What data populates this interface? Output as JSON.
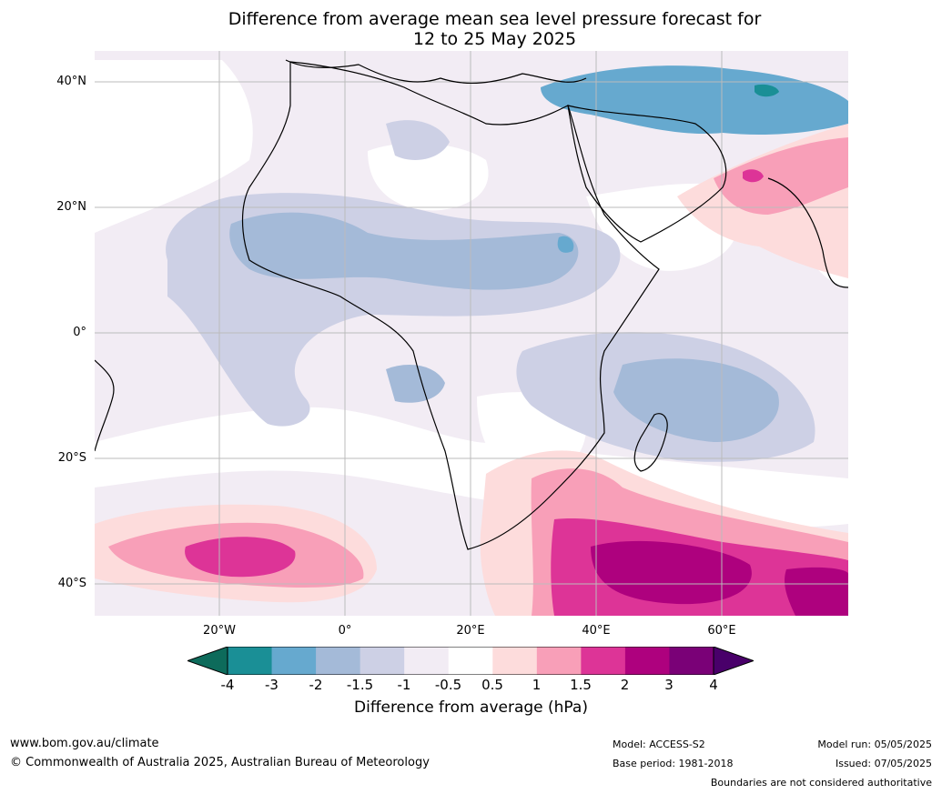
{
  "title": {
    "line1": "Difference from average mean sea level pressure forecast for",
    "line2": "12 to 25 May 2025"
  },
  "map": {
    "lat_labels": [
      "40°N",
      "20°N",
      "0°",
      "20°S",
      "40°S"
    ],
    "lon_labels": [
      "20°W",
      "0°",
      "20°E",
      "40°E",
      "60°E"
    ],
    "region": "Africa",
    "colors": {
      "lt_m4": "#0d6b5b",
      "m4_m3": "#1a8f96",
      "m3_m2": "#66a9cf",
      "m2_m15": "#a4bad8",
      "m15_m1": "#cdd0e5",
      "m1_m05": "#f2ecf4",
      "neutral": "#ffffff",
      "p05_p1": "#fddcdc",
      "p1_p15": "#f89fb8",
      "p15_p2": "#dd3497",
      "p2_p3": "#ae017e",
      "p3_p4": "#7a0177",
      "gt_p4": "#49006a"
    }
  },
  "colorbar": {
    "ticks": [
      "-4",
      "-3",
      "-2",
      "-1.5",
      "-1",
      "-0.5",
      "0.5",
      "1",
      "1.5",
      "2",
      "3",
      "4"
    ],
    "colors": [
      "#1a8f96",
      "#66a9cf",
      "#a4bad8",
      "#cdd0e5",
      "#f2ecf4",
      "#ffffff",
      "#fddcdc",
      "#f89fb8",
      "#dd3497",
      "#ae017e",
      "#7a0177"
    ],
    "extend_low_color": "#0d6b5b",
    "extend_high_color": "#49006a",
    "label": "Difference from average (hPa)"
  },
  "footer": {
    "url": "www.bom.gov.au/climate",
    "copyright": "© Commonwealth of Australia 2025, Australian Bureau of Meteorology",
    "model": "Model: ACCESS-S2",
    "base_period": "Base period: 1981-2018",
    "model_run": "Model run: 05/05/2025",
    "issued": "Issued: 07/05/2025",
    "disclaimer": "Boundaries are not considered authoritative"
  }
}
